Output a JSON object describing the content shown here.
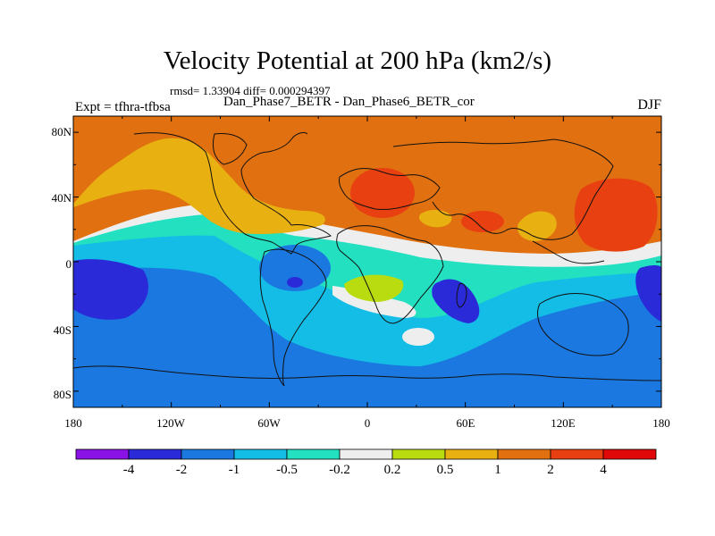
{
  "title": "Velocity Potential at 200 hPa (km2/s)",
  "stats": "rmsd= 1.33904 diff= 0.000294397",
  "experiment": "Expt = tfhra-tfbsa",
  "difference_label": "Dan_Phase7_BETR - Dan_Phase6_BETR_cor",
  "season": "DJF",
  "lat_ticks": [
    "80N",
    "40N",
    "0",
    "40S",
    "80S"
  ],
  "lon_ticks": [
    "180",
    "120W",
    "60W",
    "0",
    "60E",
    "120E",
    "180"
  ],
  "colorbar": {
    "labels": [
      "-4",
      "-2",
      "-1",
      "-0.5",
      "-0.2",
      "0.2",
      "0.5",
      "1",
      "2",
      "4"
    ],
    "colors": [
      "#8a12e6",
      "#2a2ad8",
      "#1a78e0",
      "#14bde6",
      "#22e0c0",
      "#eeeeee",
      "#b8dc10",
      "#e8b010",
      "#e07010",
      "#e84010",
      "#e00808"
    ]
  },
  "palette": {
    "blue": "#1a78e0",
    "lightblue": "#14bde6",
    "cyan": "#22e0c0",
    "white": "#eeeeee",
    "yellowgreen": "#b8dc10",
    "gold": "#e8b010",
    "orange": "#e07010",
    "redorange": "#e84010",
    "darkblue": "#2a2ad8"
  }
}
